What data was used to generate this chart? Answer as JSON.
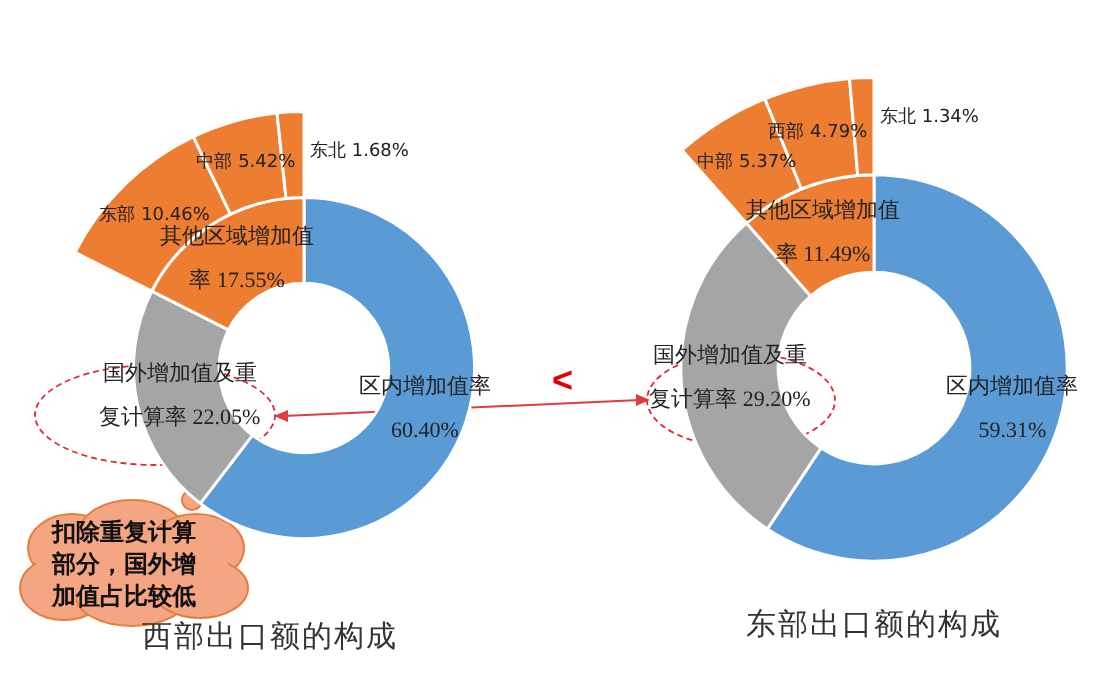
{
  "chart_data": [
    {
      "type": "donut",
      "title": "西部出口额的构成",
      "categories": [
        "区内增加值率",
        "国外增加值及重复计算率",
        "其他区域增加值率",
        "东部",
        "中部",
        "东北"
      ],
      "colors": [
        "#5b9bd5",
        "#a5a5a5",
        "#ed7d31",
        "#ed7d31",
        "#ed7d31",
        "#ed7d31"
      ],
      "series": [
        {
          "values": [
            60.4,
            22.05,
            17.55,
            null,
            null,
            null
          ],
          "value_labels": [
            "60.40%",
            "22.05%",
            "17.55%",
            null,
            null,
            null
          ]
        },
        {
          "values": [
            null,
            null,
            null,
            10.46,
            5.42,
            1.68
          ],
          "value_labels": [
            null,
            null,
            null,
            "10.46%",
            "5.42%",
            "1.68%"
          ]
        }
      ],
      "annotations": [
        "扣除重复计算部分，国外增加值占比较低",
        "<"
      ]
    },
    {
      "type": "donut",
      "title": "东部出口额的构成",
      "categories": [
        "区内增加值率",
        "国外增加值及重复计算率",
        "其他区域增加值率",
        "中部",
        "西部",
        "东北"
      ],
      "colors": [
        "#5b9bd5",
        "#a5a5a5",
        "#ed7d31",
        "#ed7d31",
        "#ed7d31",
        "#ed7d31"
      ],
      "series": [
        {
          "values": [
            59.31,
            29.2,
            11.49,
            null,
            null,
            null
          ],
          "value_labels": [
            "59.31%",
            "29.20%",
            "11.49%",
            null,
            null,
            null
          ]
        },
        {
          "values": [
            null,
            null,
            null,
            5.37,
            4.79,
            1.34
          ],
          "value_labels": [
            null,
            null,
            null,
            "5.37%",
            "4.79%",
            "1.34%"
          ]
        }
      ]
    }
  ]
}
